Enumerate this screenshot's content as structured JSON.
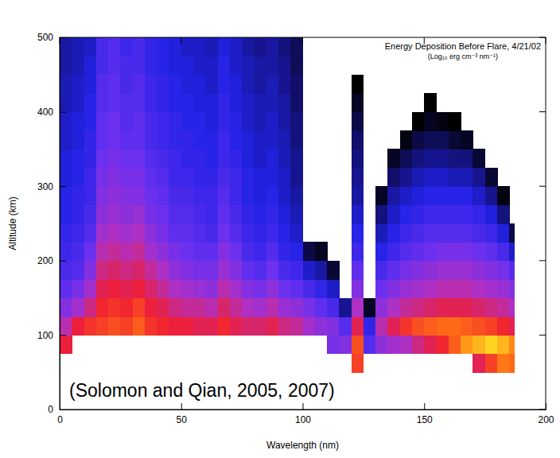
{
  "chart_data": {
    "type": "heatmap",
    "title": "Energy Deposition Before Flare, 4/21/02",
    "subtitle": "(Log₁₀ erg cm⁻³ nm⁻¹)",
    "annotation": "(Solomon and Qian, 2005, 2007)",
    "x_label": "Wavelength (nm)",
    "y_label": "Altitude (km)",
    "xlim": [
      0,
      200
    ],
    "ylim": [
      0,
      500
    ],
    "xticks": [
      0,
      50,
      100,
      150,
      200
    ],
    "yticks": [
      0,
      100,
      200,
      300,
      400,
      500
    ],
    "x_edges": [
      0,
      5,
      10,
      15,
      20,
      25,
      30,
      35,
      40,
      45,
      50,
      55,
      60,
      65,
      70,
      75,
      80,
      85,
      90,
      95,
      100,
      105,
      110,
      115,
      120,
      125,
      130,
      135,
      140,
      145,
      150,
      155,
      160,
      165,
      170,
      175,
      180,
      185,
      187
    ],
    "y_edges": [
      50,
      75,
      100,
      125,
      150,
      175,
      200,
      225,
      250,
      275,
      300,
      325,
      350,
      375,
      400,
      425,
      450,
      475,
      500
    ],
    "cells": [
      [
        null,
        -5.9,
        -6.4,
        -6.9,
        -7.2,
        -7.4,
        -7.5,
        -7.6,
        -7.7,
        -7.7,
        -7.8,
        -7.8,
        -7.9,
        -7.9,
        -8.0,
        -8.0,
        -8.1,
        -8.1
      ],
      [
        null,
        null,
        -5.9,
        -6.6,
        -7.0,
        -7.3,
        -7.4,
        -7.5,
        -7.6,
        -7.6,
        -7.7,
        -7.7,
        -7.8,
        -7.8,
        -7.9,
        -7.9,
        -8.0,
        -8.0
      ],
      [
        null,
        null,
        -5.7,
        -6.2,
        -6.6,
        -6.9,
        -7.1,
        -7.3,
        -7.4,
        -7.5,
        -7.5,
        -7.6,
        -7.6,
        -7.7,
        -7.7,
        -7.8,
        -7.8,
        -7.9
      ],
      [
        null,
        null,
        -5.6,
        -5.8,
        -6.0,
        -6.2,
        -6.4,
        -6.6,
        -6.8,
        -6.9,
        -7.0,
        -7.1,
        -7.2,
        -7.2,
        -7.3,
        -7.3,
        -7.4,
        -7.4
      ],
      [
        null,
        null,
        -5.5,
        -5.7,
        -5.9,
        -6.1,
        -6.3,
        -6.5,
        -6.7,
        -6.8,
        -6.9,
        -7.0,
        -7.1,
        -7.1,
        -7.2,
        -7.2,
        -7.3,
        -7.3
      ],
      [
        null,
        null,
        -5.6,
        -5.8,
        -6.0,
        -6.2,
        -6.4,
        -6.6,
        -6.8,
        -6.9,
        -7.0,
        -7.1,
        -7.2,
        -7.3,
        -7.3,
        -7.4,
        -7.4,
        -7.5
      ],
      [
        null,
        null,
        -5.4,
        -5.6,
        -5.9,
        -6.1,
        -6.3,
        -6.5,
        -6.7,
        -6.9,
        -7.0,
        -7.1,
        -7.2,
        -7.2,
        -7.3,
        -7.3,
        -7.4,
        -7.4
      ],
      [
        null,
        null,
        -5.7,
        -5.9,
        -6.1,
        -6.3,
        -6.6,
        -6.8,
        -7.0,
        -7.1,
        -7.2,
        -7.3,
        -7.4,
        -7.4,
        -7.5,
        -7.5,
        -7.6,
        -7.6
      ],
      [
        null,
        null,
        -5.8,
        -6.0,
        -6.3,
        -6.5,
        -6.8,
        -7.0,
        -7.1,
        -7.2,
        -7.3,
        -7.4,
        -7.5,
        -7.5,
        -7.6,
        -7.6,
        -7.7,
        -7.7
      ],
      [
        null,
        null,
        -5.9,
        -6.2,
        -6.5,
        -6.8,
        -7.0,
        -7.2,
        -7.3,
        -7.4,
        -7.5,
        -7.5,
        -7.6,
        -7.6,
        -7.7,
        -7.7,
        -7.8,
        -7.8
      ],
      [
        null,
        null,
        -5.9,
        -6.3,
        -6.6,
        -6.9,
        -7.1,
        -7.2,
        -7.3,
        -7.4,
        -7.5,
        -7.6,
        -7.6,
        -7.7,
        -7.7,
        -7.8,
        -7.8,
        -7.9
      ],
      [
        null,
        null,
        -6.0,
        -6.3,
        -6.7,
        -7.0,
        -7.2,
        -7.3,
        -7.4,
        -7.5,
        -7.6,
        -7.6,
        -7.7,
        -7.7,
        -7.8,
        -7.8,
        -7.9,
        -7.9
      ],
      [
        null,
        null,
        -6.0,
        -6.4,
        -6.8,
        -7.0,
        -7.2,
        -7.4,
        -7.5,
        -7.5,
        -7.6,
        -7.7,
        -7.7,
        -7.8,
        -7.8,
        -7.9,
        -7.9,
        -8.0
      ],
      [
        null,
        null,
        -5.8,
        -6.1,
        -6.4,
        -6.7,
        -6.9,
        -7.1,
        -7.2,
        -7.3,
        -7.4,
        -7.5,
        -7.5,
        -7.6,
        -7.6,
        -7.7,
        -7.7,
        -7.8
      ],
      [
        null,
        null,
        -6.0,
        -6.3,
        -6.6,
        -6.9,
        -7.1,
        -7.3,
        -7.4,
        -7.5,
        -7.5,
        -7.6,
        -7.7,
        -7.7,
        -7.8,
        -7.8,
        -7.9,
        -7.9
      ],
      [
        null,
        null,
        -6.1,
        -6.5,
        -6.9,
        -7.2,
        -7.4,
        -7.5,
        -7.6,
        -7.7,
        -7.7,
        -7.8,
        -7.8,
        -7.9,
        -7.9,
        -8.0,
        -8.0,
        -8.1
      ],
      [
        null,
        null,
        -6.1,
        -6.6,
        -7.0,
        -7.3,
        -7.5,
        -7.6,
        -7.7,
        -7.8,
        -7.8,
        -7.9,
        -7.9,
        -8.0,
        -8.0,
        -8.1,
        -8.1,
        -8.2
      ],
      [
        null,
        null,
        -6.0,
        -6.4,
        -6.8,
        -7.1,
        -7.3,
        -7.5,
        -7.6,
        -7.7,
        -7.8,
        -7.8,
        -7.9,
        -7.9,
        -8.0,
        -8.0,
        -8.1,
        -8.1
      ],
      [
        null,
        null,
        -6.2,
        -6.7,
        -7.1,
        -7.4,
        -7.6,
        -7.7,
        -7.8,
        -7.9,
        -7.9,
        -8.0,
        -8.0,
        -8.1,
        -8.1,
        -8.2,
        -8.2,
        -8.3
      ],
      [
        null,
        null,
        -6.3,
        -6.8,
        -7.2,
        -7.5,
        -7.7,
        -7.9,
        -8.0,
        -8.1,
        -8.2,
        -8.2,
        -8.3,
        -8.3,
        -8.4,
        -8.4,
        -8.5,
        -8.5
      ],
      [
        null,
        null,
        -6.6,
        -7.0,
        -7.4,
        -7.9,
        -8.6,
        null,
        null,
        null,
        null,
        null,
        null,
        null,
        null,
        null,
        null,
        null
      ],
      [
        null,
        null,
        -6.8,
        -7.2,
        -7.6,
        -8.1,
        -8.8,
        null,
        null,
        null,
        null,
        null,
        null,
        null,
        null,
        null,
        null,
        null
      ],
      [
        null,
        -7.0,
        -6.9,
        -7.4,
        -7.9,
        -8.7,
        null,
        null,
        null,
        null,
        null,
        null,
        null,
        null,
        null,
        null,
        null,
        null
      ],
      [
        null,
        -6.9,
        -7.3,
        -8.2,
        null,
        null,
        null,
        null,
        null,
        null,
        null,
        null,
        null,
        null,
        null,
        null,
        null,
        null
      ],
      [
        -5.6,
        -5.5,
        -6.0,
        -6.5,
        -6.9,
        -7.2,
        -7.5,
        -7.7,
        -7.9,
        -8.1,
        -8.2,
        -8.3,
        -8.4,
        -8.6,
        -8.8,
        -9.0,
        null,
        null
      ],
      [
        null,
        -7.3,
        -7.6,
        -8.8,
        null,
        null,
        null,
        null,
        null,
        null,
        null,
        null,
        null,
        null,
        null,
        null,
        null,
        null
      ],
      [
        null,
        -6.8,
        -6.4,
        -6.8,
        -7.1,
        -7.4,
        -7.7,
        -8.0,
        -8.3,
        -8.8,
        null,
        null,
        null,
        null,
        null,
        null,
        null,
        null
      ],
      [
        null,
        -6.6,
        -6.0,
        -6.5,
        -6.9,
        -7.2,
        -7.5,
        -7.7,
        -7.9,
        -8.1,
        -8.4,
        -8.8,
        null,
        null,
        null,
        null,
        null,
        null
      ],
      [
        null,
        -6.5,
        -5.7,
        -6.3,
        -6.7,
        -7.0,
        -7.3,
        -7.5,
        -7.7,
        -7.9,
        -8.2,
        -8.5,
        -8.9,
        null,
        null,
        null,
        null,
        null
      ],
      [
        null,
        -6.2,
        -5.5,
        -6.2,
        -6.6,
        -6.9,
        -7.2,
        -7.4,
        -7.6,
        -7.8,
        -8.0,
        -8.3,
        -8.6,
        -9.0,
        null,
        null,
        null,
        null
      ],
      [
        null,
        -6.0,
        -5.4,
        -6.1,
        -6.5,
        -6.8,
        -7.1,
        -7.3,
        -7.5,
        -7.7,
        -7.9,
        -8.2,
        -8.5,
        -8.8,
        -9.0,
        null,
        null,
        null
      ],
      [
        null,
        -5.8,
        -5.3,
        -6.0,
        -6.4,
        -6.7,
        -7.0,
        -7.3,
        -7.5,
        -7.7,
        -7.9,
        -8.2,
        -8.5,
        -8.9,
        null,
        null,
        null,
        null
      ],
      [
        null,
        -5.4,
        -5.3,
        -6.0,
        -6.4,
        -6.7,
        -7.0,
        -7.3,
        -7.5,
        -7.7,
        -8.0,
        -8.3,
        -8.7,
        -9.0,
        null,
        null,
        null,
        null
      ],
      [
        null,
        -5.0,
        -5.4,
        -6.0,
        -6.4,
        -6.7,
        -7.0,
        -7.3,
        -7.5,
        -7.7,
        -8.0,
        -8.3,
        -8.8,
        null,
        null,
        null,
        null,
        null
      ],
      [
        -6.0,
        -4.8,
        -5.5,
        -6.1,
        -6.5,
        -6.8,
        -7.1,
        -7.4,
        -7.6,
        -7.9,
        -8.2,
        -8.7,
        null,
        null,
        null,
        null,
        null,
        null
      ],
      [
        -5.6,
        -4.6,
        -5.6,
        -6.2,
        -6.6,
        -6.9,
        -7.2,
        -7.5,
        -7.8,
        -8.2,
        -8.7,
        null,
        null,
        null,
        null,
        null,
        null,
        null
      ],
      [
        -5.2,
        -4.8,
        -5.8,
        -6.3,
        -6.7,
        -7.0,
        -7.4,
        -7.8,
        -8.3,
        -8.9,
        null,
        null,
        null,
        null,
        null,
        null,
        null,
        null
      ],
      [
        -5.3,
        -5.1,
        -6.0,
        -6.5,
        -6.9,
        -7.3,
        -7.9,
        -8.6,
        null,
        null,
        null,
        null,
        null,
        null,
        null,
        null,
        null,
        null
      ]
    ]
  }
}
